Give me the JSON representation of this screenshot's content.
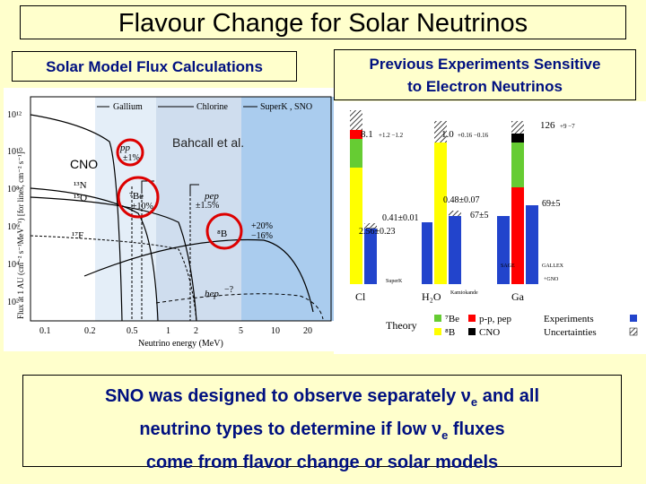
{
  "title": "Flavour Change for Solar Neutrinos",
  "left_header": "Solar Model Flux Calculations",
  "right_header_line1": "Previous Experiments Sensitive",
  "right_header_line2": "to Electron Neutrinos",
  "bottom_text": {
    "line1_pre": "SNO was designed to observe separately ",
    "nu": "ν",
    "e_sub": "e",
    "line1_post": " and all",
    "line2_pre": "neutrino types to determine if low ",
    "line2_post": " fluxes",
    "line3": "come from flavor change or solar models"
  },
  "flux_plot": {
    "ylabel": "Flux at 1 AU (cm⁻² s⁻¹MeV⁻¹) [for lines, cm⁻² s⁻¹]",
    "xlabel": "Neutrino energy (MeV)",
    "xticks": [
      "0.1",
      "0.2",
      "0.5",
      "1",
      "2",
      "5",
      "10",
      "20"
    ],
    "yticks": [
      "10¹²",
      "10¹⁰",
      "10⁸",
      "10⁶",
      "10⁴",
      "10²"
    ],
    "bands": [
      "Gallium",
      "Chlorine",
      "SuperK , SNO"
    ],
    "citation": "Bahcall et al.",
    "cno_label": "CNO",
    "labels": {
      "pp": "pp",
      "pp_unc": "±1%",
      "n13": "¹³N",
      "o15": "¹⁵O",
      "f17": "¹⁷F",
      "be7": "⁷Be",
      "be7_unc": "±10%",
      "pep": "pep",
      "pep_unc": "±1.5%",
      "b8": "⁸B",
      "b8_unc_plus": "+20%",
      "b8_unc_minus": "−16%",
      "hep": "hep",
      "hep_unc": "−?"
    }
  },
  "experiments": {
    "bars": [
      {
        "name": "Cl",
        "theory": "8.1",
        "theory_unc": "+1.2 −1.2",
        "exp": "2.56±0.23"
      },
      {
        "name": "H₂O",
        "theory": "1.0",
        "theory_unc": "+0.16 −0.16",
        "exp": "0.41±0.01"
      },
      {
        "name": "Ga",
        "theory": "126",
        "theory_unc": "+9 −7",
        "exp": "69±5"
      }
    ],
    "extra_values": [
      "0.48±0.07",
      "67±5"
    ],
    "exp_labels": [
      "SuperK",
      "Kamiokande",
      "SAGE",
      "GALLEX",
      "+GNO"
    ],
    "legend": {
      "theory": "Theory",
      "be7": "⁷Be",
      "b8": "⁸B",
      "pp_pep": "p-p, pep",
      "cno": "CNO",
      "experiments": "Experiments",
      "uncertainties": "Uncertainties"
    },
    "colors": {
      "be7": "#66CC33",
      "b8": "#FFFF00",
      "pp": "#FF0000",
      "cno": "#000000",
      "exp": "#2244CC"
    }
  }
}
